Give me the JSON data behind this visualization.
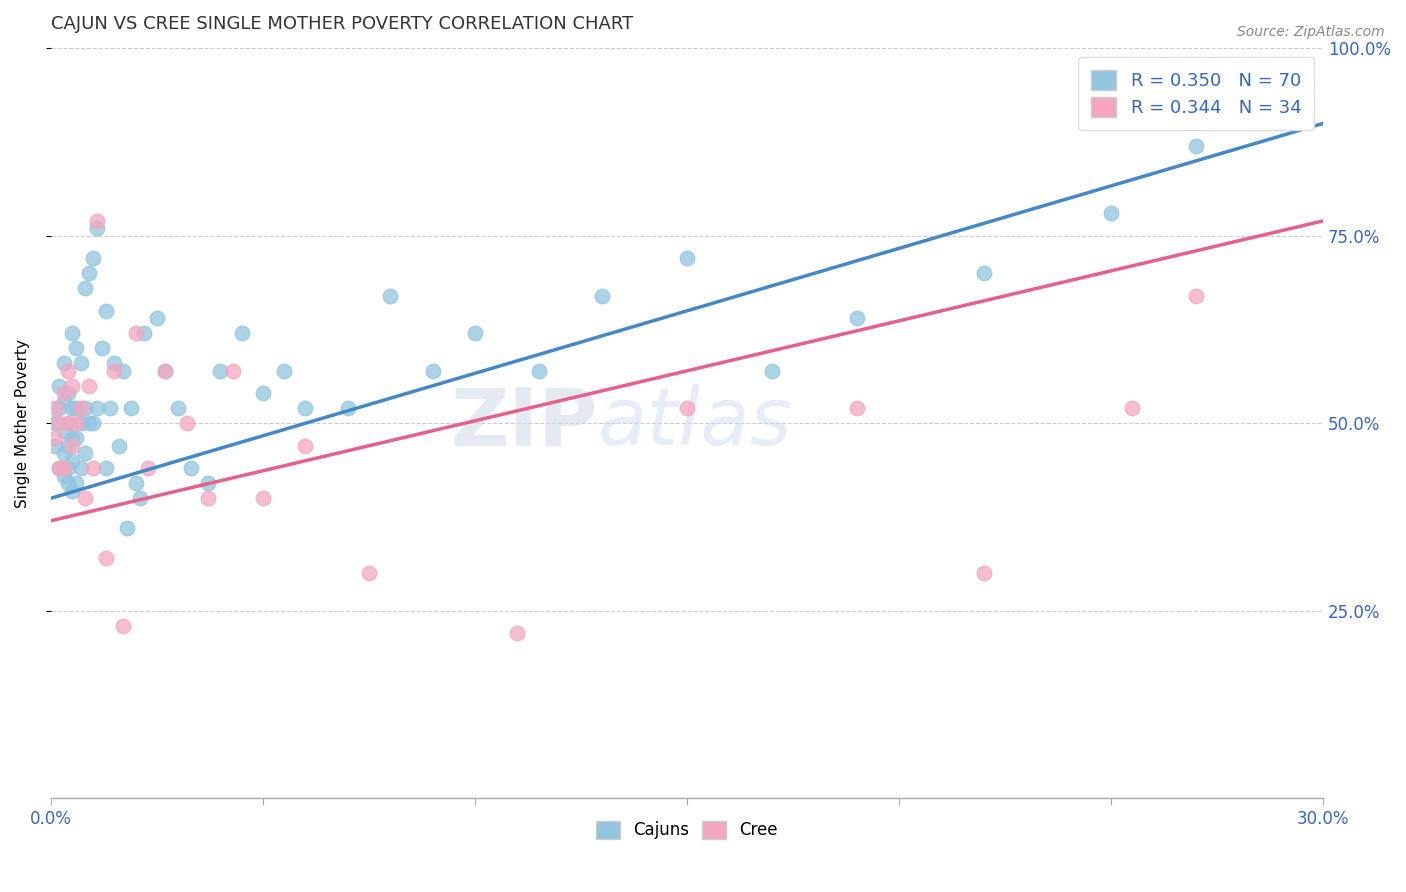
{
  "title": "CAJUN VS CREE SINGLE MOTHER POVERTY CORRELATION CHART",
  "source": "Source: ZipAtlas.com",
  "ylabel": "Single Mother Poverty",
  "xmin": 0.0,
  "xmax": 0.3,
  "ymin": 0.0,
  "ymax": 1.0,
  "cajun_color": "#92c5de",
  "cree_color": "#f4a6c0",
  "trend_cajun_color": "#4488cc",
  "trend_cree_color": "#e8608a",
  "R_cajun": 0.35,
  "N_cajun": 70,
  "R_cree": 0.344,
  "N_cree": 34,
  "legend_text_color": "#3366cc",
  "title_color": "#333333",
  "watermark_zip": "ZIP",
  "watermark_atlas": "atlas",
  "cajun_x": [
    0.001,
    0.001,
    0.002,
    0.002,
    0.002,
    0.003,
    0.003,
    0.003,
    0.003,
    0.003,
    0.004,
    0.004,
    0.004,
    0.004,
    0.004,
    0.005,
    0.005,
    0.005,
    0.005,
    0.005,
    0.006,
    0.006,
    0.006,
    0.006,
    0.007,
    0.007,
    0.007,
    0.008,
    0.008,
    0.008,
    0.009,
    0.009,
    0.01,
    0.01,
    0.011,
    0.011,
    0.012,
    0.013,
    0.013,
    0.014,
    0.015,
    0.016,
    0.017,
    0.018,
    0.019,
    0.02,
    0.021,
    0.022,
    0.025,
    0.027,
    0.03,
    0.033,
    0.037,
    0.04,
    0.045,
    0.05,
    0.055,
    0.06,
    0.07,
    0.08,
    0.09,
    0.1,
    0.115,
    0.13,
    0.15,
    0.17,
    0.19,
    0.22,
    0.25,
    0.27
  ],
  "cajun_y": [
    0.47,
    0.5,
    0.44,
    0.52,
    0.55,
    0.43,
    0.46,
    0.49,
    0.53,
    0.58,
    0.42,
    0.44,
    0.47,
    0.5,
    0.54,
    0.41,
    0.45,
    0.48,
    0.52,
    0.62,
    0.42,
    0.48,
    0.52,
    0.6,
    0.44,
    0.5,
    0.58,
    0.46,
    0.52,
    0.68,
    0.5,
    0.7,
    0.5,
    0.72,
    0.52,
    0.76,
    0.6,
    0.44,
    0.65,
    0.52,
    0.58,
    0.47,
    0.57,
    0.36,
    0.52,
    0.42,
    0.4,
    0.62,
    0.64,
    0.57,
    0.52,
    0.44,
    0.42,
    0.57,
    0.62,
    0.54,
    0.57,
    0.52,
    0.52,
    0.67,
    0.57,
    0.62,
    0.57,
    0.67,
    0.72,
    0.57,
    0.64,
    0.7,
    0.78,
    0.87
  ],
  "cree_x": [
    0.001,
    0.001,
    0.002,
    0.002,
    0.003,
    0.003,
    0.004,
    0.004,
    0.005,
    0.005,
    0.006,
    0.007,
    0.008,
    0.009,
    0.01,
    0.011,
    0.013,
    0.015,
    0.017,
    0.02,
    0.023,
    0.027,
    0.032,
    0.037,
    0.043,
    0.05,
    0.06,
    0.075,
    0.11,
    0.15,
    0.19,
    0.22,
    0.255,
    0.27
  ],
  "cree_y": [
    0.48,
    0.52,
    0.44,
    0.5,
    0.44,
    0.54,
    0.5,
    0.57,
    0.47,
    0.55,
    0.5,
    0.52,
    0.4,
    0.55,
    0.44,
    0.77,
    0.32,
    0.57,
    0.23,
    0.62,
    0.44,
    0.57,
    0.5,
    0.4,
    0.57,
    0.4,
    0.47,
    0.3,
    0.22,
    0.52,
    0.52,
    0.3,
    0.52,
    0.67
  ]
}
